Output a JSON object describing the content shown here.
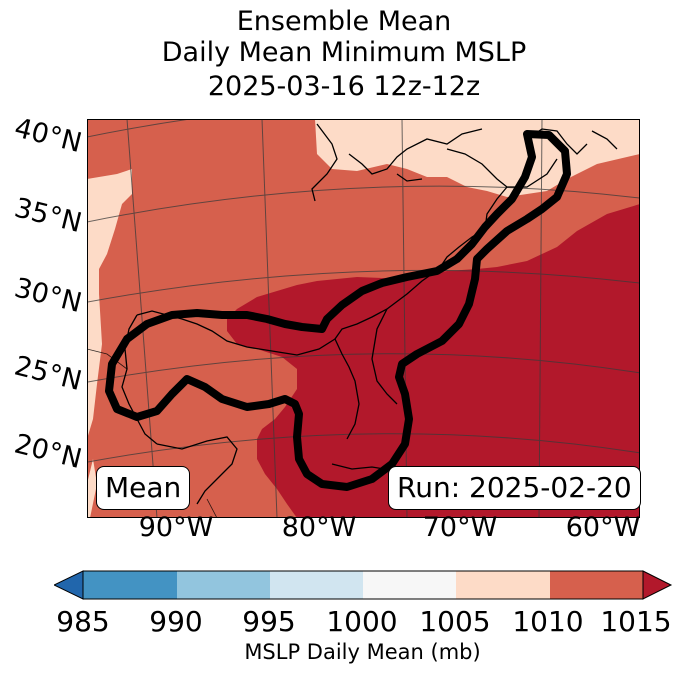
{
  "title": {
    "line1": "Ensemble Mean",
    "line2": "Daily Mean Minimum MSLP",
    "line3": "2025-03-16 12z-12z"
  },
  "map": {
    "latitude_labels": [
      "40°N",
      "35°N",
      "30°N",
      "25°N",
      "20°N"
    ],
    "longitude_labels": [
      "90°W",
      "80°W",
      "70°W",
      "60°W"
    ],
    "mean_box": "Mean",
    "run_box": "Run: 2025-02-20",
    "fill_colors": {
      "1005_1010": "#fddbc7",
      "1010_1015": "#d6604d",
      "above_1015": "#b2182b"
    },
    "contour_color": "#000000"
  },
  "colorbar": {
    "ticks": [
      "985",
      "990",
      "995",
      "1000",
      "1005",
      "1010",
      "1015"
    ],
    "label": "MSLP Daily Mean (mb)",
    "segment_colors": [
      "#4393c3",
      "#92c5de",
      "#d1e5f0",
      "#f7f7f7",
      "#fddbc7",
      "#d6604d"
    ],
    "under_color": "#2166ac",
    "over_color": "#b2182b"
  }
}
